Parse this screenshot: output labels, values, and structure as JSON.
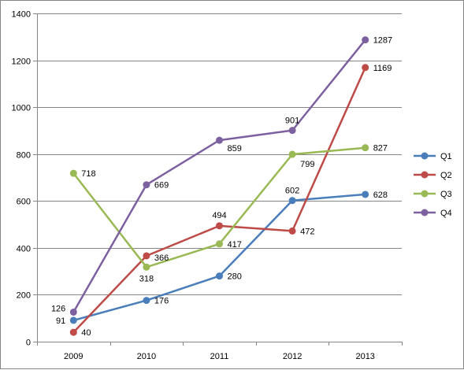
{
  "chart_data": {
    "type": "line",
    "categories": [
      "2009",
      "2010",
      "2011",
      "2012",
      "2013"
    ],
    "ylim": [
      0,
      1400
    ],
    "yticks": [
      0,
      200,
      400,
      600,
      800,
      1000,
      1200,
      1400
    ],
    "grid": true,
    "legend_position": "right",
    "series": [
      {
        "name": "Q1",
        "color": "#4a7ebb",
        "values": [
          91,
          176,
          280,
          602,
          628
        ]
      },
      {
        "name": "Q2",
        "color": "#be4b48",
        "values": [
          40,
          366,
          494,
          472,
          1169
        ]
      },
      {
        "name": "Q3",
        "color": "#98b954",
        "values": [
          718,
          318,
          417,
          799,
          827
        ]
      },
      {
        "name": "Q4",
        "color": "#7d60a0",
        "values": [
          126,
          669,
          859,
          901,
          1287
        ]
      }
    ]
  }
}
